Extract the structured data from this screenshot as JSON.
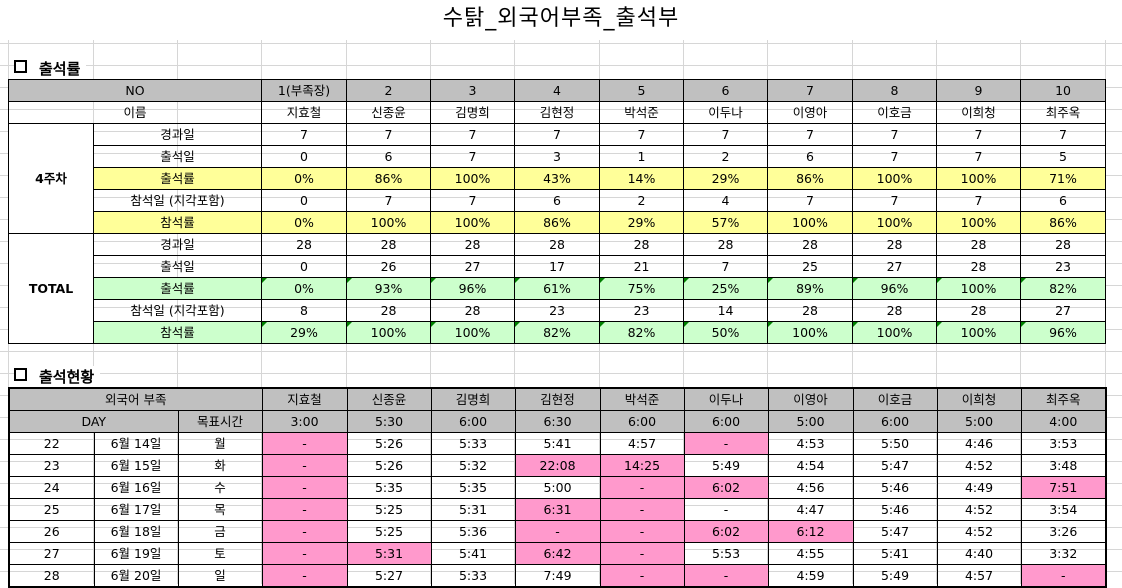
{
  "title": "수탉_외국어부족_출석부",
  "rate_section": {
    "heading": "출석률",
    "no_label": "NO",
    "name_label": "이름",
    "numbers": [
      "1(부족장)",
      "2",
      "3",
      "4",
      "5",
      "6",
      "7",
      "8",
      "9",
      "10"
    ],
    "names": [
      "지효철",
      "신종윤",
      "김명희",
      "김현정",
      "박석준",
      "이두나",
      "이영아",
      "이호금",
      "이희청",
      "최주옥"
    ],
    "groups": [
      {
        "label": "4주차",
        "rows": [
          {
            "label": "경과일",
            "style": "plain",
            "values": [
              "7",
              "7",
              "7",
              "7",
              "7",
              "7",
              "7",
              "7",
              "7",
              "7"
            ]
          },
          {
            "label": "출석일",
            "style": "plain",
            "values": [
              "0",
              "6",
              "7",
              "3",
              "1",
              "2",
              "6",
              "7",
              "7",
              "5"
            ]
          },
          {
            "label": "출석률",
            "style": "yellow",
            "values": [
              "0%",
              "86%",
              "100%",
              "43%",
              "14%",
              "29%",
              "86%",
              "100%",
              "100%",
              "71%"
            ]
          },
          {
            "label": "참석일 (지각포함)",
            "style": "plain",
            "values": [
              "0",
              "7",
              "7",
              "6",
              "2",
              "4",
              "7",
              "7",
              "7",
              "6"
            ]
          },
          {
            "label": "참석률",
            "style": "yellow",
            "values": [
              "0%",
              "100%",
              "100%",
              "86%",
              "29%",
              "57%",
              "100%",
              "100%",
              "100%",
              "86%"
            ]
          }
        ]
      },
      {
        "label": "TOTAL",
        "rows": [
          {
            "label": "경과일",
            "style": "plain",
            "values": [
              "28",
              "28",
              "28",
              "28",
              "28",
              "28",
              "28",
              "28",
              "28",
              "28"
            ]
          },
          {
            "label": "출석일",
            "style": "plain",
            "values": [
              "0",
              "26",
              "27",
              "17",
              "21",
              "7",
              "25",
              "27",
              "28",
              "23"
            ]
          },
          {
            "label": "출석률",
            "style": "green",
            "values": [
              "0%",
              "93%",
              "96%",
              "61%",
              "75%",
              "25%",
              "89%",
              "96%",
              "100%",
              "82%"
            ]
          },
          {
            "label": "참석일 (지각포함)",
            "style": "plain",
            "values": [
              "8",
              "28",
              "28",
              "23",
              "23",
              "14",
              "28",
              "28",
              "28",
              "27"
            ]
          },
          {
            "label": "참석률",
            "style": "green",
            "values": [
              "29%",
              "100%",
              "100%",
              "82%",
              "82%",
              "50%",
              "100%",
              "100%",
              "100%",
              "96%"
            ]
          }
        ]
      }
    ]
  },
  "status_section": {
    "heading": "출석현황",
    "tribe_label": "외국어 부족",
    "day_label": "DAY",
    "target_label": "목표시간",
    "names": [
      "지효철",
      "신종윤",
      "김명희",
      "김현정",
      "박석준",
      "이두나",
      "이영아",
      "이호금",
      "이희청",
      "최주옥"
    ],
    "targets": [
      "3:00",
      "5:30",
      "6:00",
      "6:30",
      "6:00",
      "6:00",
      "5:00",
      "6:00",
      "5:00",
      "4:00"
    ],
    "rows": [
      {
        "num": "22",
        "date": "6월 14일",
        "dow": "월",
        "cells": [
          [
            "-",
            1
          ],
          [
            "5:26",
            0
          ],
          [
            "5:33",
            0
          ],
          [
            "5:41",
            0
          ],
          [
            "4:57",
            0
          ],
          [
            "-",
            1
          ],
          [
            "4:53",
            0
          ],
          [
            "5:50",
            0
          ],
          [
            "4:46",
            0
          ],
          [
            "3:53",
            0
          ]
        ]
      },
      {
        "num": "23",
        "date": "6월 15일",
        "dow": "화",
        "cells": [
          [
            "-",
            1
          ],
          [
            "5:26",
            0
          ],
          [
            "5:32",
            0
          ],
          [
            "22:08",
            1
          ],
          [
            "14:25",
            1
          ],
          [
            "5:49",
            0
          ],
          [
            "4:54",
            0
          ],
          [
            "5:47",
            0
          ],
          [
            "4:52",
            0
          ],
          [
            "3:48",
            0
          ]
        ]
      },
      {
        "num": "24",
        "date": "6월 16일",
        "dow": "수",
        "cells": [
          [
            "-",
            1
          ],
          [
            "5:35",
            0
          ],
          [
            "5:35",
            0
          ],
          [
            "5:00",
            0
          ],
          [
            "-",
            1
          ],
          [
            "6:02",
            1
          ],
          [
            "4:56",
            0
          ],
          [
            "5:46",
            0
          ],
          [
            "4:49",
            0
          ],
          [
            "7:51",
            1
          ]
        ]
      },
      {
        "num": "25",
        "date": "6월 17일",
        "dow": "목",
        "cells": [
          [
            "-",
            1
          ],
          [
            "5:25",
            0
          ],
          [
            "5:31",
            0
          ],
          [
            "6:31",
            1
          ],
          [
            "-",
            1
          ],
          [
            "-",
            0
          ],
          [
            "4:47",
            0
          ],
          [
            "5:46",
            0
          ],
          [
            "4:52",
            0
          ],
          [
            "3:54",
            0
          ]
        ]
      },
      {
        "num": "26",
        "date": "6월 18일",
        "dow": "금",
        "cells": [
          [
            "-",
            1
          ],
          [
            "5:25",
            0
          ],
          [
            "5:36",
            0
          ],
          [
            "-",
            1
          ],
          [
            "-",
            1
          ],
          [
            "6:02",
            1
          ],
          [
            "6:12",
            1
          ],
          [
            "5:47",
            0
          ],
          [
            "4:52",
            0
          ],
          [
            "3:26",
            0
          ]
        ]
      },
      {
        "num": "27",
        "date": "6월 19일",
        "dow": "토",
        "cells": [
          [
            "-",
            1
          ],
          [
            "5:31",
            1
          ],
          [
            "5:41",
            0
          ],
          [
            "6:42",
            1
          ],
          [
            "-",
            1
          ],
          [
            "5:53",
            0
          ],
          [
            "4:55",
            0
          ],
          [
            "5:41",
            0
          ],
          [
            "4:40",
            0
          ],
          [
            "3:32",
            0
          ]
        ]
      },
      {
        "num": "28",
        "date": "6월 20일",
        "dow": "일",
        "cells": [
          [
            "-",
            1
          ],
          [
            "5:27",
            0
          ],
          [
            "5:33",
            0
          ],
          [
            "7:49",
            0
          ],
          [
            "-",
            1
          ],
          [
            "-",
            1
          ],
          [
            "4:59",
            0
          ],
          [
            "5:49",
            0
          ],
          [
            "4:57",
            0
          ],
          [
            "-",
            1
          ]
        ]
      }
    ]
  },
  "colors": {
    "yellow": "#ffff99",
    "green": "#ccffcc",
    "pink": "#ff99cc",
    "header_gray": "#c0c0c0"
  }
}
